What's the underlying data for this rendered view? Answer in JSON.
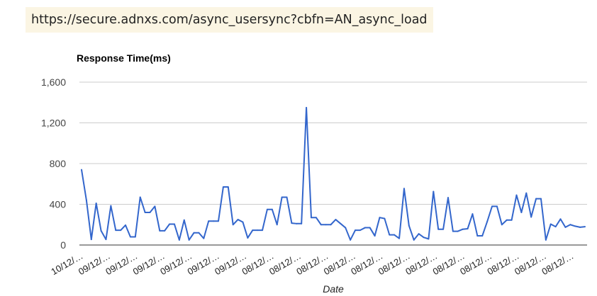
{
  "url": "https://secure.adnxs.com/async_usersync?cbfn=AN_async_load",
  "chart_data": {
    "type": "line",
    "title": "Response Time(ms)",
    "xlabel": "Date",
    "ylabel": "",
    "ylim": [
      0,
      1600
    ],
    "yticks": [
      0,
      400,
      800,
      1200,
      1600
    ],
    "ytick_labels": [
      "0",
      "400",
      "800",
      "1,200",
      "1,600"
    ],
    "grid": true,
    "legend": "none",
    "line_color": "#3366cc",
    "xtick_labels": [
      "10/12/…",
      "09/12/…",
      "09/12/…",
      "09/12/…",
      "09/12/…",
      "09/12/…",
      "09/12/…",
      "08/12/…",
      "08/12/…",
      "08/12/…",
      "08/12/…",
      "08/12/…",
      "08/12/…",
      "08/12/…",
      "08/12/…",
      "08/12/…",
      "08/12/…",
      "08/12/…",
      "08/12/…"
    ],
    "series": [
      {
        "values": [
          740,
          440,
          55,
          410,
          140,
          55,
          385,
          145,
          145,
          195,
          80,
          80,
          470,
          320,
          320,
          380,
          140,
          140,
          205,
          205,
          50,
          245,
          50,
          120,
          120,
          65,
          235,
          235,
          235,
          570,
          570,
          200,
          250,
          225,
          70,
          145,
          145,
          145,
          350,
          350,
          200,
          470,
          470,
          215,
          210,
          210,
          1350,
          270,
          270,
          200,
          200,
          200,
          250,
          210,
          170,
          50,
          145,
          145,
          170,
          170,
          90,
          270,
          260,
          100,
          100,
          65,
          555,
          190,
          50,
          110,
          75,
          60,
          525,
          155,
          155,
          465,
          135,
          135,
          155,
          160,
          305,
          90,
          90,
          230,
          380,
          380,
          200,
          245,
          245,
          490,
          320,
          510,
          275,
          455,
          455,
          50,
          205,
          180,
          255,
          175,
          200,
          185,
          175,
          180
        ]
      }
    ]
  }
}
